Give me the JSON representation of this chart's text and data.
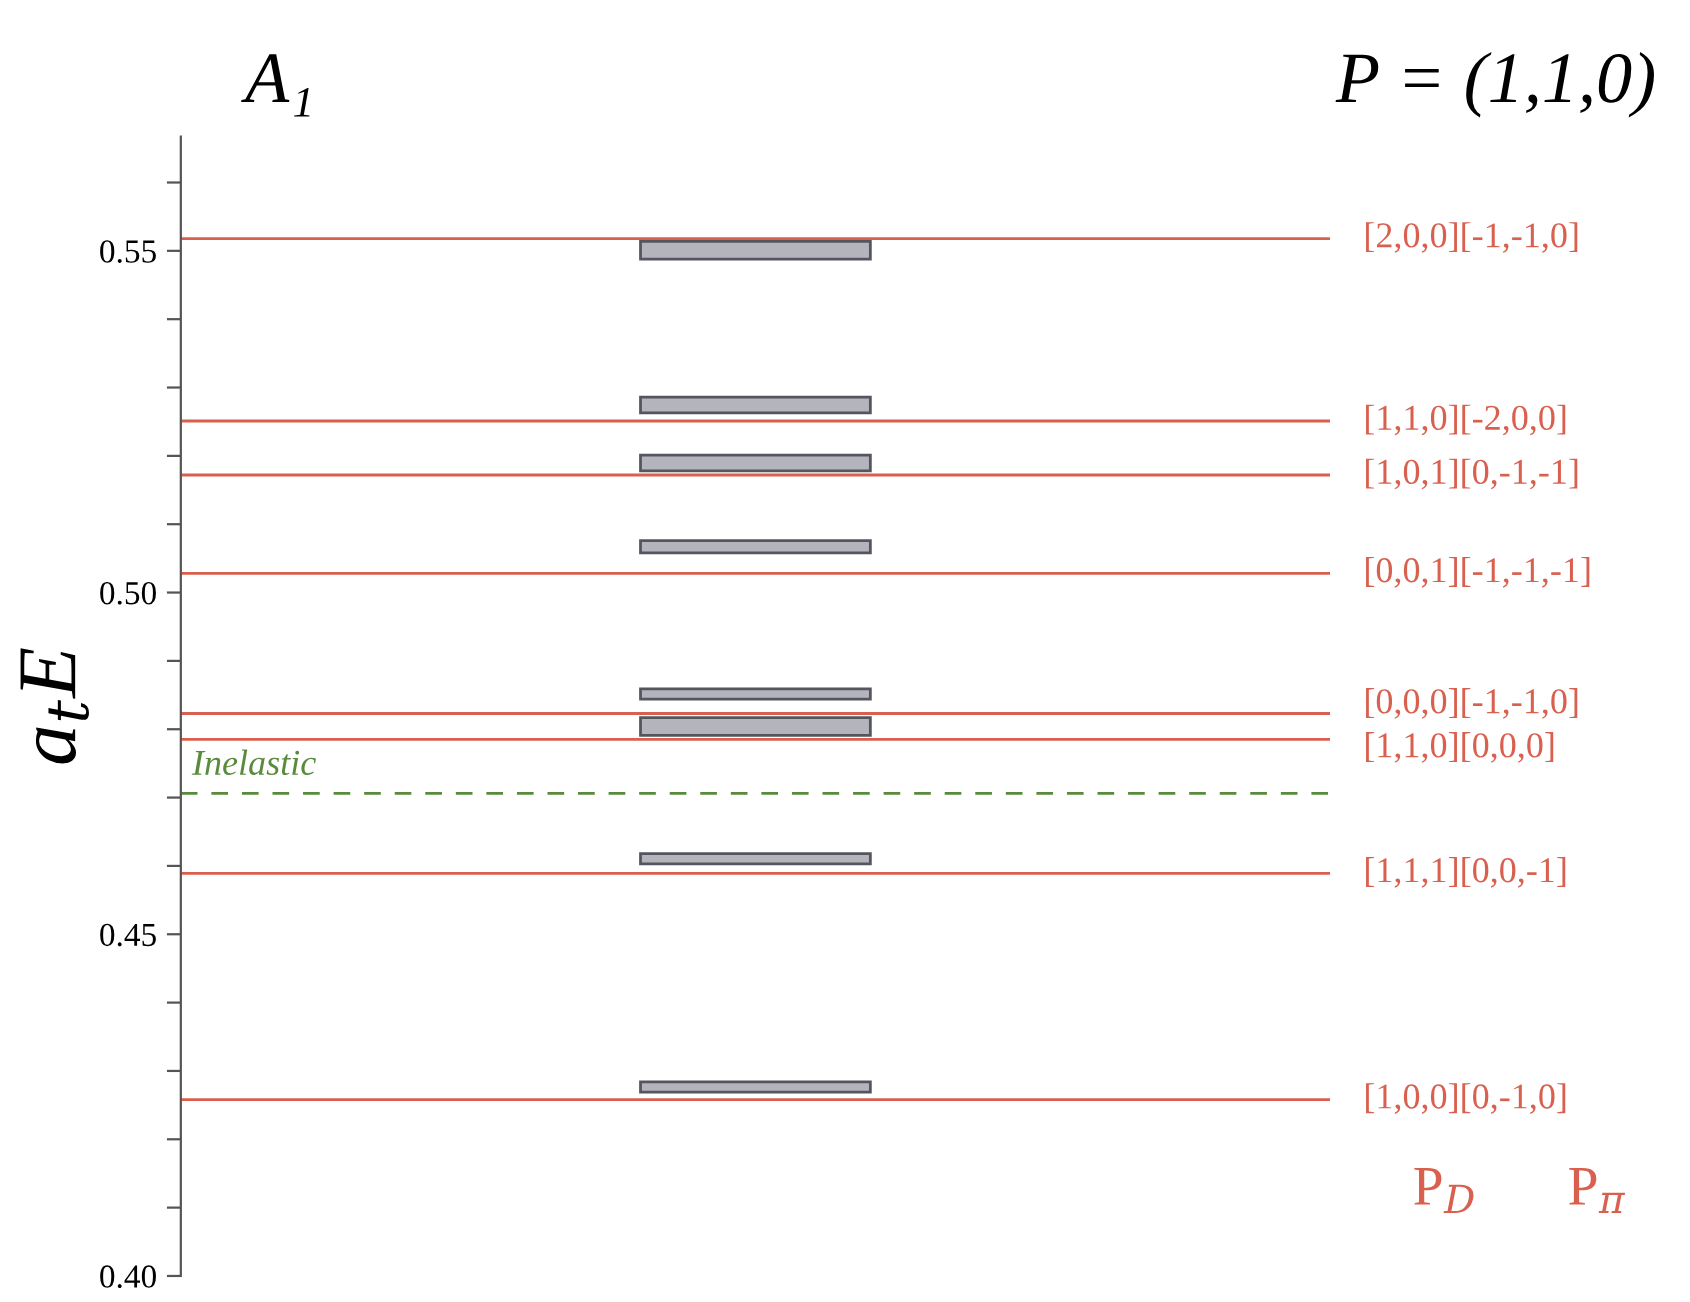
{
  "chart_data": {
    "type": "bar",
    "title": "A₁",
    "subtitle": "P = (1,1,0)",
    "ylabel": "a$_{t}$E",
    "categories": [
      null
    ],
    "series": [
      {
        "color": "#b4b4bc",
        "base": [
          0.5488
        ],
        "values": [
          0.0026
        ]
      },
      {
        "color": "#b4b4bc",
        "base": [
          0.5263
        ],
        "values": [
          0.0023
        ]
      },
      {
        "color": "#b4b4bc",
        "base": [
          0.5178
        ],
        "values": [
          0.0023
        ]
      },
      {
        "color": "#b4b4bc",
        "base": [
          0.5058
        ],
        "values": [
          0.0018
        ]
      },
      {
        "color": "#b4b4bc",
        "base": [
          0.4844
        ],
        "values": [
          0.0015
        ]
      },
      {
        "color": "#b4b4bc",
        "base": [
          0.4791
        ],
        "values": [
          0.0026
        ]
      },
      {
        "color": "#b4b4bc",
        "base": [
          0.4603
        ],
        "values": [
          0.0015
        ]
      },
      {
        "color": "#b4b4bc",
        "base": [
          0.4269
        ],
        "values": [
          0.0015
        ]
      }
    ],
    "ylim": [
      0.4,
      0.5667
    ],
    "yticks": [
      {
        "value": 0.4,
        "label": "0.40"
      },
      {
        "value": 0.41,
        "label": null
      },
      {
        "value": 0.42,
        "label": null
      },
      {
        "value": 0.43,
        "label": null
      },
      {
        "value": 0.44,
        "label": null
      },
      {
        "value": 0.45,
        "label": "0.45"
      },
      {
        "value": 0.46,
        "label": null
      },
      {
        "value": 0.47,
        "label": null
      },
      {
        "value": 0.48,
        "label": null
      },
      {
        "value": 0.49,
        "label": null
      },
      {
        "value": 0.5,
        "label": "0.50"
      },
      {
        "value": 0.51,
        "label": null
      },
      {
        "value": 0.52,
        "label": null
      },
      {
        "value": 0.53,
        "label": null
      },
      {
        "value": 0.54,
        "label": null
      },
      {
        "value": 0.55,
        "label": "0.55"
      },
      {
        "value": 0.56,
        "label": null
      }
    ],
    "tick_labels": "y",
    "ref_lines": [
      {
        "axis": "y",
        "value": 0.5518,
        "color": "#d9604f"
      },
      {
        "axis": "y",
        "value": 0.5251,
        "color": "#d9604f"
      },
      {
        "axis": "y",
        "value": 0.5172,
        "color": "#d9604f"
      },
      {
        "axis": "y",
        "value": 0.5028,
        "color": "#d9604f"
      },
      {
        "axis": "y",
        "value": 0.4823,
        "color": "#d9604f"
      },
      {
        "axis": "y",
        "value": 0.4785,
        "color": "#d9604f"
      },
      {
        "axis": "y",
        "value": 0.4589,
        "color": "#d9604f"
      },
      {
        "axis": "y",
        "value": 0.4258,
        "color": "#d9604f"
      },
      {
        "axis": "y",
        "value": 0.4706,
        "label": "Inelastic",
        "color": "#5a8a3c",
        "line_style": "dashed"
      }
    ],
    "annotations": [
      "[2,0,0][-1,-1,0]",
      "[1,1,0][-2,0,0]",
      "[1,0,1][0,-1,-1]",
      "[0,0,1][-1,-1,-1]",
      "[0,0,0][-1,-1,0]",
      "[1,1,0][0,0,0]",
      "[1,1,1][0,0,-1]",
      "[1,0,0][0,-1,0]",
      "P$_{D}$",
      "P$_{π}$"
    ]
  }
}
